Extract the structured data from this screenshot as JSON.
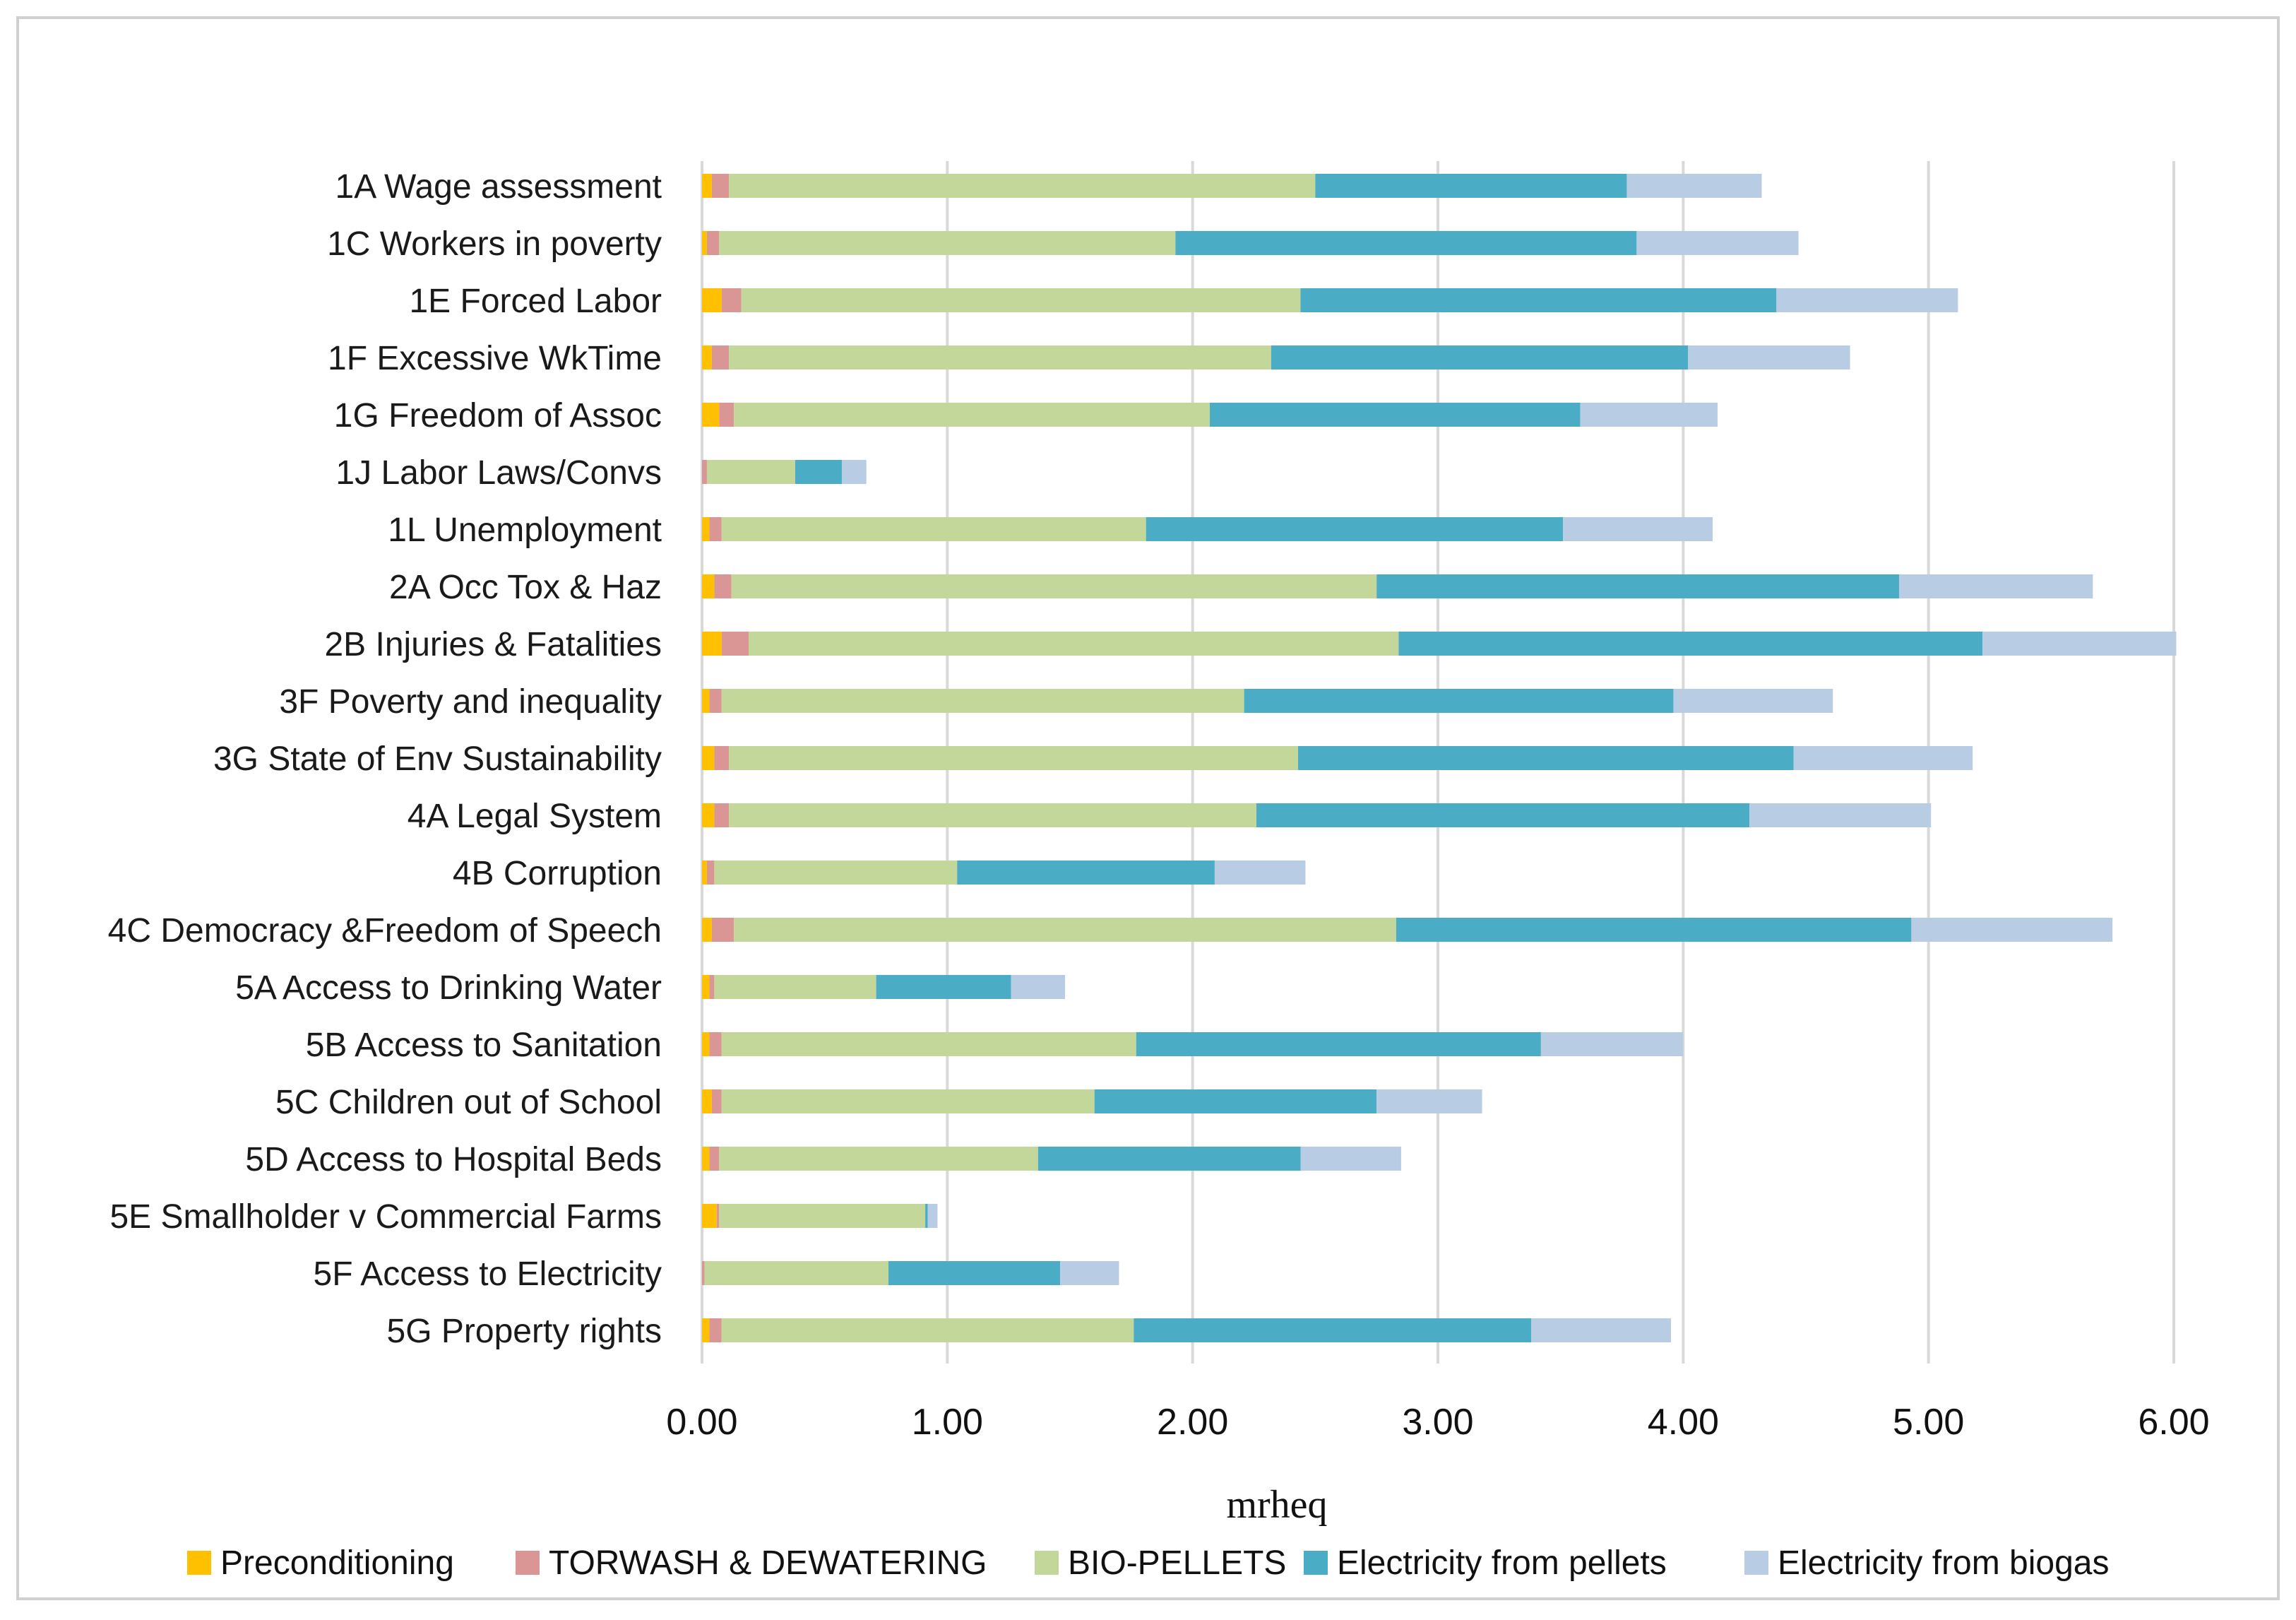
{
  "chart_data": {
    "type": "bar",
    "orientation": "horizontal",
    "stacked": true,
    "title": "",
    "xlabel": "mrheq",
    "ylabel": "",
    "xlim": [
      0,
      6
    ],
    "x_ticks": [
      "0.00",
      "1.00",
      "2.00",
      "3.00",
      "4.00",
      "5.00",
      "6.00"
    ],
    "grid": "vertical",
    "legend_position": "bottom",
    "categories": [
      "1A Wage assessment",
      "1C Workers in poverty",
      "1E Forced Labor",
      "1F Excessive WkTime",
      "1G Freedom of Assoc",
      "1J Labor Laws/Convs",
      "1L Unemployment",
      "2A Occ Tox & Haz",
      "2B Injuries & Fatalities",
      "3F Poverty and inequality",
      "3G State of Env Sustainability",
      "4A Legal System",
      "4B Corruption",
      "4C Democracy &Freedom of Speech",
      "5A Access to Drinking Water",
      "5B Access to Sanitation",
      "5C Children out of School",
      "5D Access to Hospital Beds",
      "5E Smallholder v Commercial Farms",
      "5F Access to Electricity",
      "5G Property rights"
    ],
    "series": [
      {
        "name": "Preconditioning",
        "color": "#FFC000",
        "values": [
          0.04,
          0.02,
          0.08,
          0.04,
          0.07,
          0.0,
          0.03,
          0.05,
          0.08,
          0.03,
          0.05,
          0.05,
          0.02,
          0.04,
          0.03,
          0.03,
          0.04,
          0.03,
          0.06,
          0.0,
          0.03
        ]
      },
      {
        "name": "TORWASH & DEWATERING",
        "color": "#DA9694",
        "values": [
          0.07,
          0.05,
          0.08,
          0.07,
          0.06,
          0.02,
          0.05,
          0.07,
          0.11,
          0.05,
          0.06,
          0.06,
          0.03,
          0.09,
          0.02,
          0.05,
          0.04,
          0.04,
          0.01,
          0.01,
          0.05
        ]
      },
      {
        "name": "BIO-PELLETS",
        "color": "#C4D79B",
        "values": [
          2.39,
          1.86,
          2.28,
          2.21,
          1.94,
          0.36,
          1.73,
          2.63,
          2.65,
          2.13,
          2.32,
          2.15,
          0.99,
          2.7,
          0.66,
          1.69,
          1.52,
          1.3,
          0.84,
          0.75,
          1.68
        ]
      },
      {
        "name": "Electricity from pellets",
        "color": "#4BACC6",
        "values": [
          1.27,
          1.88,
          1.94,
          1.7,
          1.51,
          0.19,
          1.7,
          2.13,
          2.38,
          1.75,
          2.02,
          2.01,
          1.05,
          2.1,
          0.55,
          1.65,
          1.15,
          1.07,
          0.01,
          0.7,
          1.62
        ]
      },
      {
        "name": "Electricity from biogas",
        "color": "#B8CCE4",
        "values": [
          0.55,
          0.66,
          0.74,
          0.66,
          0.56,
          0.1,
          0.61,
          0.79,
          0.79,
          0.65,
          0.73,
          0.74,
          0.37,
          0.82,
          0.22,
          0.58,
          0.43,
          0.41,
          0.04,
          0.24,
          0.57
        ]
      }
    ]
  }
}
